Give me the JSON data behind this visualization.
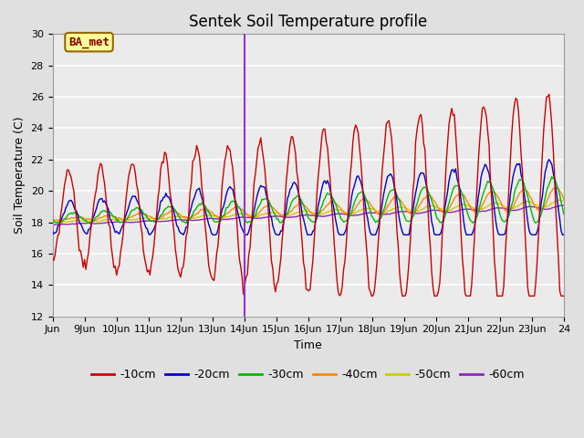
{
  "title": "Sentek Soil Temperature profile",
  "xlabel": "Time",
  "ylabel": "Soil Temperature (C)",
  "ylim": [
    12,
    30
  ],
  "yticks": [
    12,
    14,
    16,
    18,
    20,
    22,
    24,
    26,
    28,
    30
  ],
  "annotation_label": "BA_met",
  "vline_day": 6,
  "vline_color": "#9933cc",
  "colors": {
    "-10cm": "#cc0000",
    "-20cm": "#0000cc",
    "-30cm": "#00bb00",
    "-40cm": "#ff8800",
    "-50cm": "#cccc00",
    "-60cm": "#9922bb"
  },
  "legend_labels": [
    "-10cm",
    "-20cm",
    "-30cm",
    "-40cm",
    "-50cm",
    "-60cm"
  ],
  "bg_color": "#e0e0e0",
  "plot_bg_color": "#ebebeb",
  "grid_color": "#ffffff",
  "title_fontsize": 12,
  "label_fontsize": 9,
  "tick_fontsize": 8
}
